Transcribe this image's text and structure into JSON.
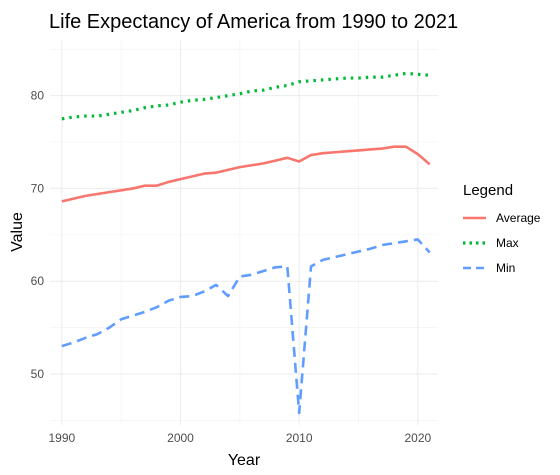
{
  "chart_data": {
    "type": "line",
    "title": "Life Expectancy of America from 1990 to 2021",
    "xlabel": "Year",
    "ylabel": "Value",
    "xlim": [
      1989.0,
      2021.7
    ],
    "ylim": [
      44.5,
      86.0
    ],
    "xticks": [
      1990,
      2000,
      2010,
      2020
    ],
    "xtick_labels": [
      "1990",
      "2000",
      "2010",
      "2020"
    ],
    "yticks": [
      50,
      60,
      70,
      80
    ],
    "ytick_labels": [
      "50",
      "60",
      "70",
      "80"
    ],
    "grid": true,
    "legend": {
      "title": "Legend",
      "position": "right"
    },
    "x": [
      1990,
      1991,
      1992,
      1993,
      1994,
      1995,
      1996,
      1997,
      1998,
      1999,
      2000,
      2001,
      2002,
      2003,
      2004,
      2005,
      2006,
      2007,
      2008,
      2009,
      2010,
      2011,
      2012,
      2013,
      2014,
      2015,
      2016,
      2017,
      2018,
      2019,
      2020,
      2021
    ],
    "series": [
      {
        "name": "Average",
        "color": "#F8766D",
        "dash": "solid",
        "values": [
          68.6,
          68.9,
          69.2,
          69.4,
          69.6,
          69.8,
          70.0,
          70.3,
          70.3,
          70.7,
          71.0,
          71.3,
          71.6,
          71.7,
          72.0,
          72.3,
          72.5,
          72.7,
          73.0,
          73.3,
          72.9,
          73.6,
          73.8,
          73.9,
          74.0,
          74.1,
          74.2,
          74.3,
          74.5,
          74.5,
          73.7,
          72.6
        ]
      },
      {
        "name": "Max",
        "color": "#00BA38",
        "dash": "dotted",
        "values": [
          77.5,
          77.7,
          77.8,
          77.8,
          78.0,
          78.2,
          78.4,
          78.7,
          78.9,
          79.0,
          79.3,
          79.5,
          79.6,
          79.8,
          80.0,
          80.2,
          80.5,
          80.6,
          80.9,
          81.1,
          81.5,
          81.6,
          81.7,
          81.8,
          81.9,
          81.9,
          82.0,
          82.0,
          82.2,
          82.4,
          82.3,
          82.2
        ]
      },
      {
        "name": "Min",
        "color": "#619CFF",
        "dash": "dashed",
        "values": [
          53.0,
          53.4,
          53.9,
          54.3,
          55.0,
          55.9,
          56.3,
          56.7,
          57.2,
          57.9,
          58.3,
          58.4,
          58.9,
          59.6,
          58.4,
          60.5,
          60.7,
          61.1,
          61.5,
          61.6,
          45.8,
          61.6,
          62.3,
          62.6,
          62.9,
          63.2,
          63.5,
          63.9,
          64.1,
          64.3,
          64.5,
          63.1
        ]
      }
    ]
  }
}
